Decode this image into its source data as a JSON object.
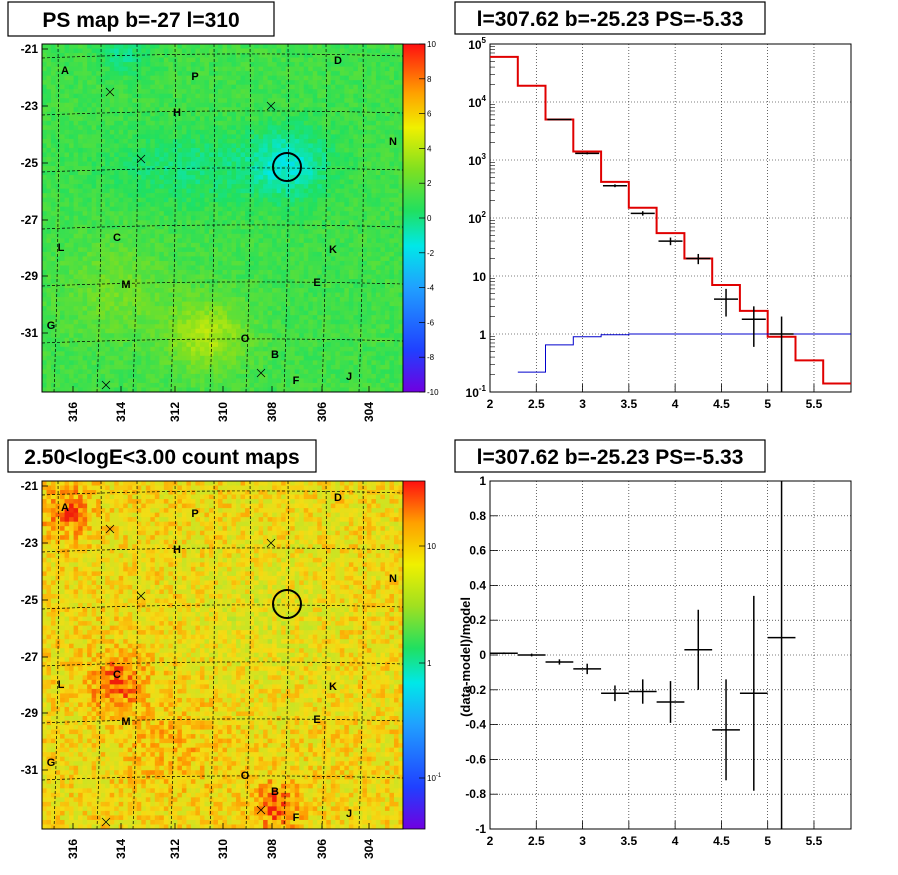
{
  "chart_data": [
    {
      "type": "heatmap",
      "title": "PS map b=-27 l=310",
      "x_ticks": [
        "316",
        "314",
        "312",
        "310",
        "308",
        "306",
        "304"
      ],
      "y_ticks": [
        "-21",
        "-23",
        "-25",
        "-27",
        "-29",
        "-31"
      ],
      "colorbar": {
        "scale": "linear",
        "range": [
          -10,
          10
        ],
        "ticks": [
          "10",
          "8",
          "6",
          "4",
          "2",
          "0",
          "-2",
          "-4",
          "-6",
          "-8",
          "-10"
        ]
      },
      "source_labels": [
        "A",
        "P",
        "D",
        "H",
        "N",
        "L",
        "C",
        "K",
        "M",
        "E",
        "G",
        "O",
        "B",
        "F",
        "J"
      ],
      "circle_marker": {
        "l": 307.62,
        "b": -25.23
      }
    },
    {
      "type": "line",
      "title": "l=307.62 b=-25.23 PS=-5.33",
      "xlim": [
        2,
        5.9
      ],
      "ylim": [
        0.1,
        100000
      ],
      "yscale": "log",
      "x_ticks": [
        "2",
        "2.5",
        "3",
        "3.5",
        "4",
        "4.5",
        "5",
        "5.5"
      ],
      "y_ticks": [
        "10^5",
        "10^4",
        "10^3",
        "10^2",
        "10",
        "1",
        "10^-1"
      ],
      "grid": true,
      "series": [
        {
          "style": "step",
          "color": "#e00000",
          "edges": [
            2.0,
            2.3,
            2.6,
            2.9,
            3.2,
            3.5,
            3.8,
            4.1,
            4.4,
            4.7,
            5.0,
            5.3,
            5.6,
            5.9
          ],
          "values": [
            60000,
            19000,
            5000,
            1400,
            420,
            150,
            55,
            20,
            7,
            2.5,
            0.9,
            0.35,
            0.14
          ]
        },
        {
          "style": "step",
          "color": "#0000cc",
          "edges": [
            2.3,
            2.6,
            2.9,
            3.2,
            3.5,
            3.8,
            4.1,
            4.4,
            4.7,
            5.0,
            5.3,
            5.6,
            5.9
          ],
          "values": [
            0.22,
            0.65,
            0.9,
            0.97,
            1.0,
            1.0,
            1.0,
            1.0,
            1.0,
            1.0,
            1.0,
            1.0
          ]
        },
        {
          "style": "points",
          "color": "#000000",
          "points": [
            {
              "x": 2.75,
              "y": 5000,
              "yerr_lo": 4900,
              "yerr_hi": 5100
            },
            {
              "x": 3.05,
              "y": 1300,
              "yerr_lo": 1250,
              "yerr_hi": 1350
            },
            {
              "x": 3.35,
              "y": 360,
              "yerr_lo": 340,
              "yerr_hi": 380
            },
            {
              "x": 3.65,
              "y": 120,
              "yerr_lo": 110,
              "yerr_hi": 131
            },
            {
              "x": 3.95,
              "y": 40,
              "yerr_lo": 34,
              "yerr_hi": 46
            },
            {
              "x": 4.25,
              "y": 20,
              "yerr_lo": 16,
              "yerr_hi": 24
            },
            {
              "x": 4.55,
              "y": 4,
              "yerr_lo": 2,
              "yerr_hi": 6
            },
            {
              "x": 4.85,
              "y": 1.8,
              "yerr_lo": 0.6,
              "yerr_hi": 3
            },
            {
              "x": 5.15,
              "y": 1,
              "yerr_lo": 0.1,
              "yerr_hi": 2
            }
          ]
        }
      ]
    },
    {
      "type": "heatmap",
      "title": "2.50<logE<3.00 count maps",
      "x_ticks": [
        "316",
        "314",
        "312",
        "310",
        "308",
        "306",
        "304"
      ],
      "y_ticks": [
        "-21",
        "-23",
        "-25",
        "-27",
        "-29",
        "-31"
      ],
      "colorbar": {
        "scale": "log",
        "ticks": [
          "10",
          "1",
          "10^-1"
        ]
      },
      "source_labels": [
        "A",
        "P",
        "D",
        "H",
        "N",
        "L",
        "C",
        "K",
        "M",
        "E",
        "G",
        "O",
        "B",
        "F",
        "J"
      ],
      "circle_marker": {
        "l": 307.62,
        "b": -25.23
      }
    },
    {
      "type": "scatter",
      "title": "l=307.62 b=-25.23 PS=-5.33",
      "ylabel": "(data-model)/model",
      "xlim": [
        2,
        5.9
      ],
      "ylim": [
        -1,
        1
      ],
      "x_ticks": [
        "2",
        "2.5",
        "3",
        "3.5",
        "4",
        "4.5",
        "5",
        "5.5"
      ],
      "y_ticks": [
        "1",
        "0.8",
        "0.6",
        "0.4",
        "0.2",
        "0",
        "-0.2",
        "-0.4",
        "-0.6",
        "-0.8",
        "-1"
      ],
      "grid": true,
      "points": [
        {
          "x": 2.15,
          "y": 0.01,
          "yerr": 0.005,
          "xerr": 0.15
        },
        {
          "x": 2.45,
          "y": 0.0,
          "yerr": 0.008,
          "xerr": 0.15
        },
        {
          "x": 2.75,
          "y": -0.04,
          "yerr": 0.015,
          "xerr": 0.15
        },
        {
          "x": 3.05,
          "y": -0.08,
          "yerr": 0.03,
          "xerr": 0.15
        },
        {
          "x": 3.35,
          "y": -0.22,
          "yerr": 0.045,
          "xerr": 0.15
        },
        {
          "x": 3.65,
          "y": -0.21,
          "yerr": 0.07,
          "xerr": 0.15
        },
        {
          "x": 3.95,
          "y": -0.27,
          "yerr": 0.12,
          "xerr": 0.15
        },
        {
          "x": 4.25,
          "y": 0.03,
          "yerr": 0.23,
          "xerr": 0.15
        },
        {
          "x": 4.55,
          "y": -0.43,
          "yerr": 0.29,
          "xerr": 0.15
        },
        {
          "x": 4.85,
          "y": -0.22,
          "yerr": 0.56,
          "xerr": 0.15
        },
        {
          "x": 5.15,
          "y": 0.1,
          "yerr": 1.1,
          "xerr": 0.15
        }
      ]
    }
  ]
}
